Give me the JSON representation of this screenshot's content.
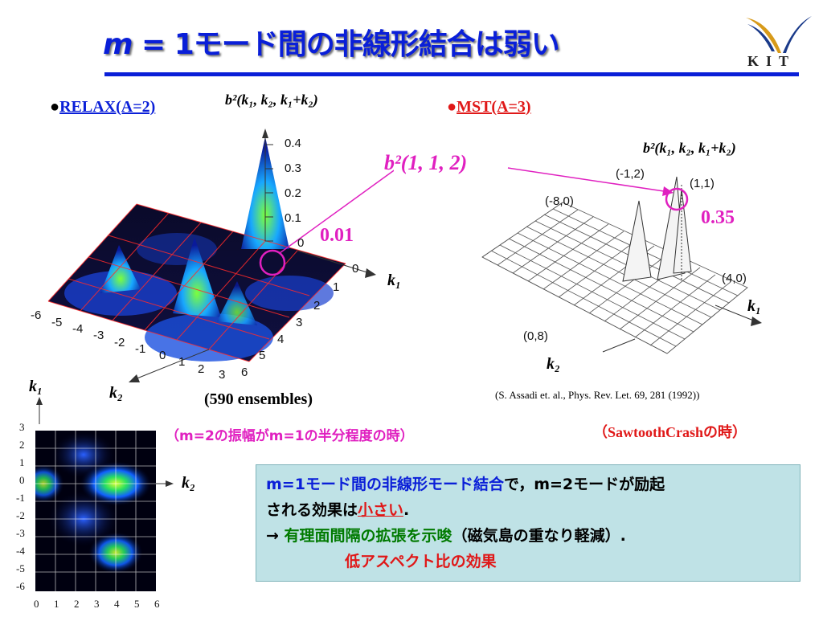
{
  "title": {
    "m": "m",
    "rest": " = 1モード間の非線形結合は弱い"
  },
  "logo": {
    "text": "KIT"
  },
  "left": {
    "heading_dot": "●",
    "heading": "RELAX(A=2)",
    "zlabel": "b²(k₁, k₂, k₁+k₂)",
    "zticks": [
      "0.4",
      "0.3",
      "0.2",
      "0.1",
      "0"
    ],
    "k1_ticks": [
      "0",
      "1",
      "2",
      "3",
      "4",
      "5",
      "6"
    ],
    "k2_ticks": [
      "-6",
      "-5",
      "-4",
      "-3",
      "-2",
      "-1",
      "0",
      "1",
      "2",
      "3"
    ],
    "k1_label": "k₁",
    "k2_label": "k₂",
    "value": "0.01",
    "ensembles": "(590 ensembles)"
  },
  "callout": {
    "label": "b²(1, 1, 2)"
  },
  "right": {
    "heading_dot": "●",
    "heading": "MST(A=3)",
    "zlabel": "b²(k₁, k₂, k₁+k₂)",
    "pt_m1_2": "(-1,2)",
    "pt_1_1": "(1,1)",
    "pt_m8_0": "(-8,0)",
    "pt_4_0": "(4,0)",
    "pt_0_8": "(0,8)",
    "value": "0.35",
    "k1_label": "k₁",
    "k2_label": "k₂",
    "citation": "(S. Assadi et. al., Phys. Rev. Let. 69, 281 (1992))",
    "note": "（SawtoothCrashの時）"
  },
  "heatmap": {
    "k1_label": "k₁",
    "k2_label": "k₂",
    "yticks": [
      "3",
      "2",
      "1",
      "0",
      "-1",
      "-2",
      "-3",
      "-4",
      "-5",
      "-6"
    ],
    "xticks": [
      "0",
      "1",
      "2",
      "3",
      "4",
      "5",
      "6"
    ],
    "note": "（m=2の振幅がm=1の半分程度の時）"
  },
  "box": {
    "line1_a": "m=1モード間の非線形モード結合",
    "line1_b": "で，",
    "line1_c": "m=2モードが励起",
    "line2_a": "される効果は",
    "line2_b": "小さい",
    "line2_c": ".",
    "line3_arrow": "→ ",
    "line3_a": "有理面間隔の拡張を示唆",
    "line3_b": "（磁気島の重なり軽減）.",
    "line4": "低アスペクト比の効果"
  },
  "colors": {
    "accent": "#0a1fd8",
    "magenta": "#e020c0",
    "red": "#e01818",
    "boxbg": "#bfe2e6"
  }
}
